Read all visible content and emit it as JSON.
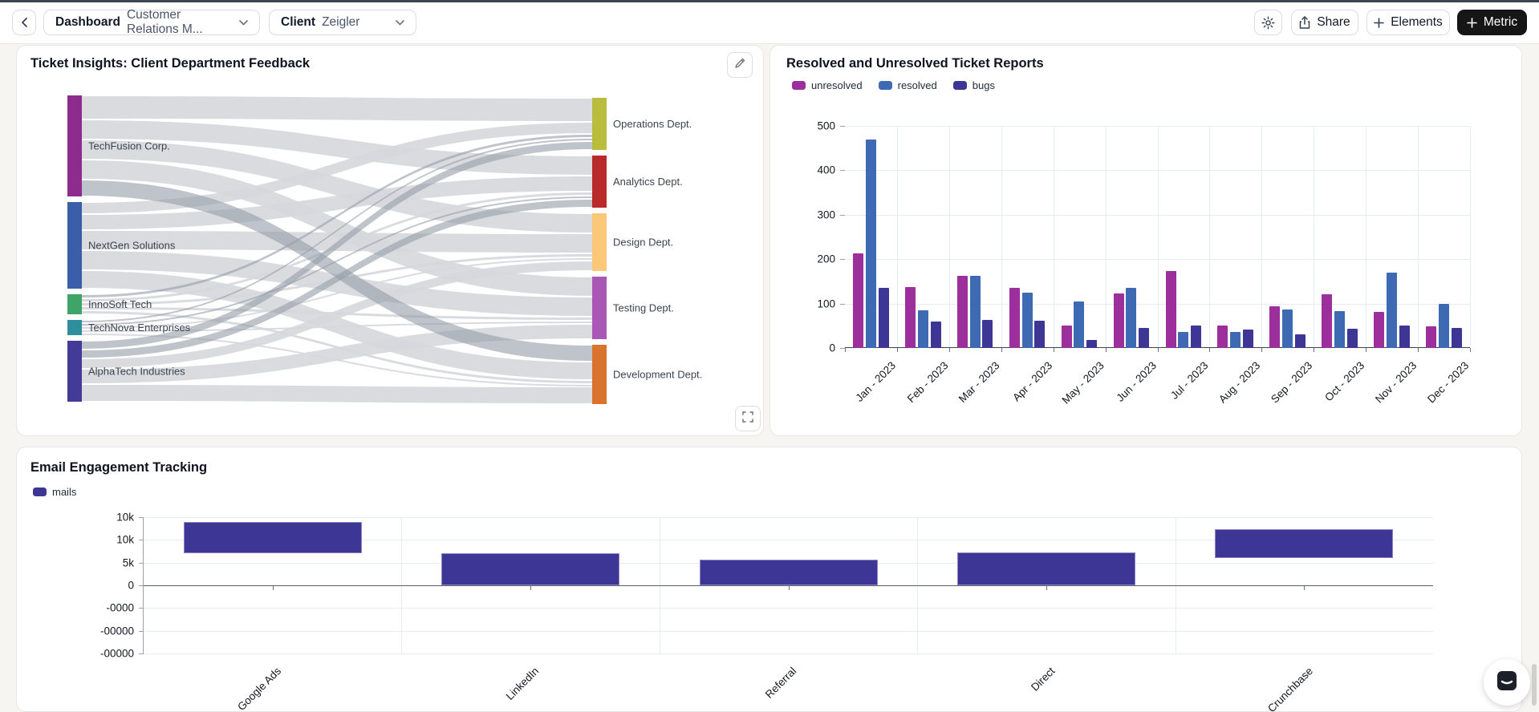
{
  "topbar": {
    "dashboard_label": "Dashboard",
    "dashboard_value": "Customer Relations M...",
    "client_label": "Client",
    "client_value": "Zeigler",
    "share_label": "Share",
    "elements_label": "Elements",
    "metric_label": "Metric"
  },
  "panels": {
    "sankey": {
      "title": "Ticket Insights: Client Department Feedback"
    },
    "tickets": {
      "title": "Resolved and Unresolved Ticket Reports"
    },
    "email": {
      "title": "Email Engagement Tracking"
    }
  },
  "chart_data": [
    {
      "id": "department-feedback-sankey",
      "type": "sankey",
      "title": "Ticket Insights: Client Department Feedback",
      "sources": [
        {
          "label": "TechFusion Corp.",
          "color": "#8e2c8e"
        },
        {
          "label": "NextGen Solutions",
          "color": "#3a5fa8"
        },
        {
          "label": "InnoSoft Tech",
          "color": "#3fa468"
        },
        {
          "label": "TechNova Enterprises",
          "color": "#2f8f9e"
        },
        {
          "label": "AlphaTech Industries",
          "color": "#433b97"
        }
      ],
      "targets": [
        {
          "label": "Operations Dept.",
          "color": "#b9bc3c"
        },
        {
          "label": "Analytics Dept.",
          "color": "#b92b2b"
        },
        {
          "label": "Design Dept.",
          "color": "#fac878"
        },
        {
          "label": "Testing Dept.",
          "color": "#a959b5"
        },
        {
          "label": "Development Dept.",
          "color": "#d9732e"
        }
      ],
      "links": [
        [
          30,
          25,
          25,
          25,
          21
        ],
        [
          15,
          20,
          25,
          25,
          23
        ],
        [
          5,
          5,
          5,
          5,
          5
        ],
        [
          4,
          4,
          4,
          4,
          3
        ],
        [
          11,
          11,
          13,
          19,
          22
        ]
      ]
    },
    {
      "id": "ticket-reports",
      "type": "bar",
      "title": "Resolved and Unresolved Ticket Reports",
      "categories": [
        "Jan - 2023",
        "Feb - 2023",
        "Mar - 2023",
        "Apr - 2023",
        "May - 2023",
        "Jun - 2023",
        "Jul - 2023",
        "Aug - 2023",
        "Sep - 2023",
        "Oct - 2023",
        "Nov - 2023",
        "Dec - 2023"
      ],
      "series": [
        {
          "name": "unresolved",
          "color": "#9c2f9c",
          "values": [
            213,
            138,
            163,
            135,
            50,
            123,
            173,
            51,
            93,
            121,
            82,
            49
          ]
        },
        {
          "name": "resolved",
          "color": "#3d6ab2",
          "values": [
            470,
            85,
            162,
            125,
            104,
            135,
            36,
            37,
            87,
            83,
            170,
            100
          ]
        },
        {
          "name": "bugs",
          "color": "#3e3694",
          "values": [
            136,
            60,
            64,
            62,
            18,
            45,
            50,
            41,
            30,
            44,
            51,
            46
          ]
        }
      ],
      "ylim": [
        0,
        500
      ],
      "ytick_labels": [
        "0",
        "100",
        "200",
        "300",
        "400",
        "500"
      ],
      "grid": "on",
      "legend_position": "top-left"
    },
    {
      "id": "email-engagement",
      "type": "bar",
      "title": "Email Engagement Tracking",
      "categories": [
        "Google Ads",
        "LinkedIn",
        "Referral",
        "Direct",
        "Crunchbase"
      ],
      "series": [
        {
          "name": "mails",
          "color": "#3e3694",
          "values": [
            14000,
            7100,
            5650,
            7250,
            12400
          ],
          "bar_base": [
            7050,
            0,
            0,
            0,
            6000
          ]
        }
      ],
      "ytick_labels": [
        "10k",
        "10k",
        "5k",
        "0",
        "-0000",
        "-00000",
        "-00000"
      ],
      "grid": "on",
      "legend_position": "top-left"
    }
  ]
}
